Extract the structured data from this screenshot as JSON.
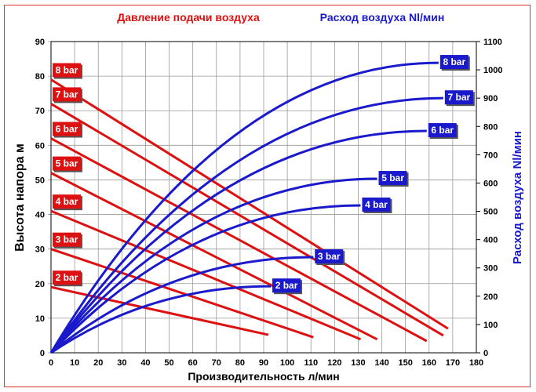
{
  "chart_data": {
    "type": "line",
    "legend_left_title": "Давление подачи воздуха",
    "legend_right_title": "Расход воздуха Nl/мин",
    "xlabel": "Производительность л/мин",
    "ylabel": "Высота напора м",
    "y2label": "Расход воздуха Nl/мин",
    "xlim": [
      0,
      180
    ],
    "ylim": [
      0,
      90
    ],
    "y2lim": [
      0,
      1100
    ],
    "xticks": [
      0,
      10,
      20,
      30,
      40,
      50,
      60,
      70,
      80,
      90,
      100,
      110,
      120,
      130,
      140,
      150,
      160,
      170,
      180
    ],
    "yticks": [
      0,
      10,
      20,
      30,
      40,
      50,
      60,
      70,
      80,
      90
    ],
    "y2ticks": [
      0,
      100,
      200,
      300,
      400,
      500,
      600,
      700,
      800,
      900,
      1000,
      1100
    ],
    "grid": true,
    "colors": {
      "head": "#dd1111",
      "air": "#1a1acc"
    },
    "head_series": [
      {
        "name": "8 bar",
        "x": [
          0,
          168
        ],
        "y": [
          79,
          7
        ]
      },
      {
        "name": "7 bar",
        "x": [
          0,
          166
        ],
        "y": [
          72,
          5
        ]
      },
      {
        "name": "6 bar",
        "x": [
          0,
          159
        ],
        "y": [
          62,
          3.4
        ]
      },
      {
        "name": "5 bar",
        "x": [
          0,
          138
        ],
        "y": [
          52,
          3.9
        ]
      },
      {
        "name": "4 bar",
        "x": [
          0,
          131
        ],
        "y": [
          41,
          3.9
        ]
      },
      {
        "name": "3 bar",
        "x": [
          0,
          111
        ],
        "y": [
          30,
          4.5
        ]
      },
      {
        "name": "2 bar",
        "x": [
          0,
          92
        ],
        "y": [
          19,
          5.2
        ]
      }
    ],
    "air_series": [
      {
        "name": "8 bar",
        "x": [
          0,
          164
        ],
        "y": [
          0,
          1025
        ]
      },
      {
        "name": "7 bar",
        "x": [
          0,
          166
        ],
        "y": [
          0,
          900
        ]
      },
      {
        "name": "6 bar",
        "x": [
          0,
          159
        ],
        "y": [
          0,
          784
        ]
      },
      {
        "name": "5 bar",
        "x": [
          0,
          138
        ],
        "y": [
          0,
          615
        ]
      },
      {
        "name": "4 bar",
        "x": [
          0,
          131
        ],
        "y": [
          0,
          521
        ]
      },
      {
        "name": "3 bar",
        "x": [
          0,
          111
        ],
        "y": [
          0,
          338
        ]
      },
      {
        "name": "2 bar",
        "x": [
          0,
          93
        ],
        "y": [
          0,
          235
        ]
      }
    ]
  }
}
